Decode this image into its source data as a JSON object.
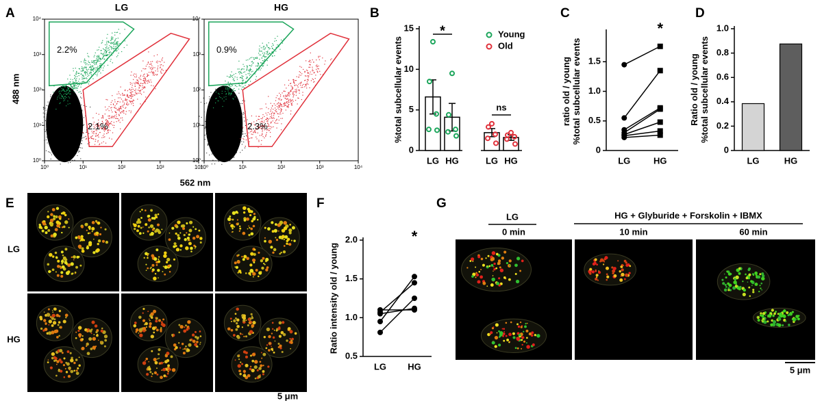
{
  "flow_axes": {
    "xlabel": "562 nm",
    "ylabel": "488 nm"
  },
  "chart_data": [
    {
      "type": "flow",
      "panel": "A",
      "title": "LG",
      "log": true,
      "xlim": [
        1,
        10000
      ],
      "ylim": [
        1,
        10000
      ],
      "xticks": [
        {
          "value": 1,
          "label": "10⁰"
        },
        {
          "value": 10,
          "label": "10¹"
        },
        {
          "value": 100,
          "label": "10²"
        },
        {
          "value": 1000,
          "label": "10³"
        },
        {
          "value": 10000,
          "label": "10⁴"
        }
      ],
      "yticks": [
        {
          "value": 1,
          "label": "10⁰"
        },
        {
          "value": 10,
          "label": "10¹"
        },
        {
          "value": 100,
          "label": "10²"
        },
        {
          "value": 1000,
          "label": "10³"
        },
        {
          "value": 10000,
          "label": "10⁴"
        }
      ],
      "annotations": [
        "2.2%",
        "2.1%"
      ]
    },
    {
      "type": "flow",
      "title": "HG",
      "log": true,
      "xlim": [
        1,
        10000
      ],
      "ylim": [
        1,
        10000
      ],
      "xticks": [
        {
          "value": 1,
          "label": "10⁰"
        },
        {
          "value": 10,
          "label": "10¹"
        },
        {
          "value": 100,
          "label": "10²"
        },
        {
          "value": 1000,
          "label": "10³"
        },
        {
          "value": 10000,
          "label": "10⁴"
        }
      ],
      "yticks": [
        {
          "value": 1,
          "label": "10⁰"
        },
        {
          "value": 10,
          "label": "10¹"
        },
        {
          "value": 100,
          "label": "10²"
        },
        {
          "value": 1000,
          "label": "10³"
        },
        {
          "value": 10000,
          "label": "10⁴"
        }
      ],
      "annotations": [
        "0.9%",
        "2.3%"
      ]
    },
    {
      "type": "dotbar",
      "panel": "B",
      "ylabel": [
        "%total subcellular events"
      ],
      "categories": [
        "LG",
        "HG",
        "LG",
        "HG"
      ],
      "ylim": [
        0,
        15
      ],
      "yticks": [
        0,
        5,
        10,
        15
      ],
      "legend": "top-right",
      "annotations": [
        "*",
        "ns"
      ],
      "series": [
        {
          "name": "Young",
          "color": "#1aa55a",
          "values": [
            6.6,
            4.1,
            null,
            null
          ],
          "errors": [
            2.1,
            1.7,
            null,
            null
          ],
          "points": [
            [
              13.4,
              8.5,
              4.5,
              2.6,
              2.5
            ],
            [
              9.5,
              4.4,
              2.6,
              2.3,
              1.8
            ],
            null,
            null
          ]
        },
        {
          "name": "Old",
          "color": "#e0303a",
          "values": [
            null,
            null,
            2.2,
            1.6
          ],
          "errors": [
            null,
            null,
            0.5,
            0.35
          ],
          "points": [
            null,
            null,
            [
              3.3,
              2.9,
              2.0,
              1.5,
              0.9
            ],
            [
              2.2,
              1.9,
              1.7,
              1.4,
              0.8
            ]
          ]
        }
      ]
    },
    {
      "type": "paired",
      "panel": "C",
      "ylabel": [
        "ratio old / young",
        "%total subcellular events"
      ],
      "categories": [
        "LG",
        "HG"
      ],
      "ylim": [
        0,
        2
      ],
      "yticks": [
        0,
        0.5,
        {
          "value": 1,
          "label": "1.0"
        },
        1.5
      ],
      "markers": [
        "circle",
        "square"
      ],
      "annotations": [
        "*"
      ],
      "series": [
        {
          "values": [
            1.45,
            1.76
          ]
        },
        {
          "values": [
            0.55,
            1.35
          ]
        },
        {
          "values": [
            0.35,
            0.72
          ]
        },
        {
          "values": [
            0.3,
            0.7
          ]
        },
        {
          "values": [
            0.27,
            0.48
          ]
        },
        {
          "values": [
            0.25,
            0.33
          ]
        },
        {
          "values": [
            0.22,
            0.26
          ]
        }
      ]
    },
    {
      "type": "bar",
      "panel": "D",
      "ylabel": [
        "Ratio old / young",
        "%total subcellular events"
      ],
      "categories": [
        "LG",
        "HG"
      ],
      "values": [
        0.385,
        0.875
      ],
      "colors": [
        "#d4d4d4",
        "#5e5e5e"
      ],
      "ylim": [
        0,
        1
      ],
      "yticks": [
        0,
        0.2,
        0.4,
        0.6,
        0.8,
        {
          "value": 1,
          "label": "1.0"
        }
      ]
    },
    {
      "type": "paired",
      "panel": "F",
      "ylabel": [
        "Ratio intensity old / young"
      ],
      "categories": [
        "LG",
        "HG"
      ],
      "ylim": [
        0.5,
        2
      ],
      "yticks": [
        0.5,
        {
          "value": 1,
          "label": "1.0"
        },
        1.5,
        {
          "value": 2,
          "label": "2.0"
        }
      ],
      "markers": [
        "circle",
        "circle"
      ],
      "annotations": [
        "*"
      ],
      "series": [
        {
          "values": [
            1.1,
            1.1
          ]
        },
        {
          "values": [
            1.07,
            1.45
          ]
        },
        {
          "values": [
            1.05,
            1.12
          ]
        },
        {
          "values": [
            0.95,
            1.53
          ]
        },
        {
          "values": [
            0.81,
            1.25
          ]
        }
      ]
    }
  ],
  "images": {
    "E": {
      "panel": "E",
      "rows": [
        "LG",
        "HG"
      ],
      "scale": "5 μm"
    },
    "G": {
      "panel": "G",
      "control": "LG",
      "treatment": "HG + Glyburide + Forskolin + IBMX",
      "times": [
        "0 min",
        "10 min",
        "60 min"
      ],
      "scale": "5 μm"
    }
  }
}
